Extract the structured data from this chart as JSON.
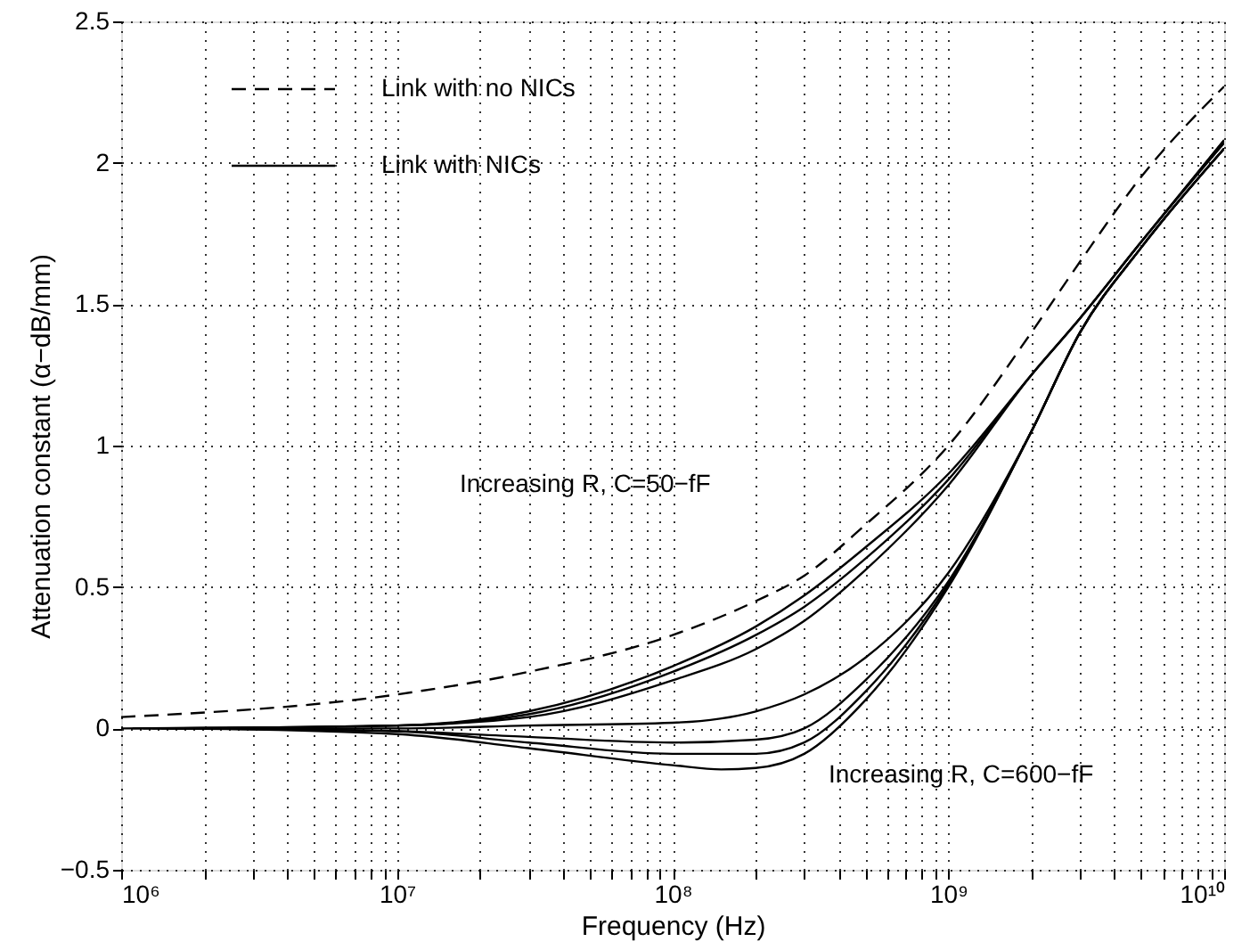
{
  "chart_data": {
    "type": "line",
    "xlabel": "Frequency (Hz)",
    "ylabel": "Attenuation constant (α−dB/mm)",
    "log": "x",
    "grid": true,
    "legend": "top left",
    "xlim": [
      1000000,
      10000000000
    ],
    "ylim": [
      -0.5,
      2.5
    ],
    "xticks": [
      {
        "value": 1000000,
        "label": "10⁶"
      },
      {
        "value": 2000000,
        "label": null
      },
      {
        "value": 3000000,
        "label": null
      },
      {
        "value": 4000000,
        "label": null
      },
      {
        "value": 5000000,
        "label": null
      },
      {
        "value": 6000000,
        "label": null
      },
      {
        "value": 7000000,
        "label": null
      },
      {
        "value": 8000000,
        "label": null
      },
      {
        "value": 9000000,
        "label": null
      },
      {
        "value": 10000000,
        "label": "10⁷"
      },
      {
        "value": 20000000,
        "label": null
      },
      {
        "value": 30000000,
        "label": null
      },
      {
        "value": 40000000,
        "label": null
      },
      {
        "value": 50000000,
        "label": null
      },
      {
        "value": 60000000,
        "label": null
      },
      {
        "value": 70000000,
        "label": null
      },
      {
        "value": 80000000,
        "label": null
      },
      {
        "value": 90000000,
        "label": null
      },
      {
        "value": 100000000,
        "label": "10⁸"
      },
      {
        "value": 200000000,
        "label": null
      },
      {
        "value": 300000000,
        "label": null
      },
      {
        "value": 400000000,
        "label": null
      },
      {
        "value": 500000000,
        "label": null
      },
      {
        "value": 600000000,
        "label": null
      },
      {
        "value": 700000000,
        "label": null
      },
      {
        "value": 800000000,
        "label": null
      },
      {
        "value": 900000000,
        "label": null
      },
      {
        "value": 1000000000,
        "label": "10⁹"
      },
      {
        "value": 2000000000,
        "label": null
      },
      {
        "value": 3000000000,
        "label": null
      },
      {
        "value": 4000000000,
        "label": null
      },
      {
        "value": 5000000000,
        "label": null
      },
      {
        "value": 6000000000,
        "label": null
      },
      {
        "value": 7000000000,
        "label": null
      },
      {
        "value": 8000000000,
        "label": null
      },
      {
        "value": 9000000000,
        "label": null
      },
      {
        "value": 10000000000,
        "label": "10¹⁰"
      }
    ],
    "yticks": [
      {
        "value": -0.5,
        "label": "−0.5"
      },
      0,
      0.5,
      1,
      1.5,
      2,
      2.5
    ],
    "annotations": [
      "Increasing R, C=50−fF",
      "Increasing R, C=600−fF"
    ],
    "series": [
      {
        "name": "Link with no NICs",
        "color": "#000000",
        "line_style": "dashed",
        "x": [
          1000000,
          10000000,
          30000000,
          100000000,
          200000000,
          300000000,
          500000000,
          1000000000,
          2000000000,
          3000000000,
          5000000000,
          10000000000
        ],
        "values": [
          0.04,
          0.12,
          0.2,
          0.33,
          0.45,
          0.54,
          0.72,
          1.0,
          1.4,
          1.65,
          1.95,
          2.27
        ]
      },
      {
        "name": "Link with NICs",
        "color": "#000000",
        "line_style": "solid",
        "x": [
          1000000,
          10000000,
          30000000,
          100000000,
          200000000,
          300000000,
          500000000,
          1000000000,
          2000000000,
          3000000000,
          5000000000,
          10000000000
        ],
        "values": [
          0,
          0.01,
          0.06,
          0.22,
          0.36,
          0.47,
          0.64,
          0.9,
          1.25,
          1.45,
          1.72,
          2.08
        ]
      },
      {
        "color": "#000000",
        "line_style": "solid",
        "x": [
          1100000,
          10000000,
          30000000,
          100000000,
          200000000,
          300000000,
          500000000,
          1000000000,
          2000000000,
          3000000000,
          5000000000,
          10000000000
        ],
        "values": [
          0,
          0.01,
          0.05,
          0.2,
          0.33,
          0.43,
          0.6,
          0.88,
          1.25,
          1.45,
          1.72,
          2.08
        ]
      },
      {
        "color": "#000000",
        "line_style": "solid",
        "x": [
          1200000,
          10000000,
          30000000,
          100000000,
          200000000,
          300000000,
          500000000,
          1000000000,
          2000000000,
          3000000000,
          5000000000,
          10000000000
        ],
        "values": [
          0,
          0.01,
          0.04,
          0.17,
          0.28,
          0.38,
          0.56,
          0.86,
          1.25,
          1.45,
          1.72,
          2.07
        ]
      },
      {
        "color": "#000000",
        "line_style": "solid",
        "x": [
          1300000,
          10000000,
          30000000,
          100000000,
          200000000,
          300000000,
          500000000,
          1000000000,
          2000000000,
          3000000000,
          5000000000,
          10000000000
        ],
        "values": [
          0,
          0,
          0.01,
          0.02,
          0.06,
          0.12,
          0.25,
          0.55,
          1.05,
          1.4,
          1.7,
          2.05
        ]
      },
      {
        "color": "#000000",
        "line_style": "solid",
        "x": [
          1400000,
          10000000,
          30000000,
          100000000,
          200000000,
          300000000,
          500000000,
          1000000000,
          2000000000,
          3000000000,
          5000000000,
          10000000000
        ],
        "values": [
          0,
          -0.01,
          -0.03,
          -0.05,
          -0.04,
          0,
          0.17,
          0.52,
          1.05,
          1.4,
          1.7,
          2.05
        ]
      },
      {
        "color": "#000000",
        "line_style": "solid",
        "x": [
          1500000,
          10000000,
          30000000,
          100000000,
          200000000,
          300000000,
          500000000,
          1000000000,
          2000000000,
          3000000000,
          5000000000,
          10000000000
        ],
        "values": [
          0,
          -0.01,
          -0.05,
          -0.09,
          -0.09,
          -0.05,
          0.13,
          0.51,
          1.05,
          1.4,
          1.7,
          2.05
        ]
      },
      {
        "color": "#000000",
        "line_style": "solid",
        "x": [
          1600000,
          10000000,
          30000000,
          100000000,
          150000000,
          200000000,
          300000000,
          500000000,
          1000000000,
          2000000000,
          3000000000,
          5000000000,
          10000000000
        ],
        "values": [
          0,
          -0.02,
          -0.07,
          -0.13,
          -0.145,
          -0.14,
          -0.09,
          0.1,
          0.5,
          1.05,
          1.4,
          1.7,
          2.05
        ]
      }
    ]
  }
}
